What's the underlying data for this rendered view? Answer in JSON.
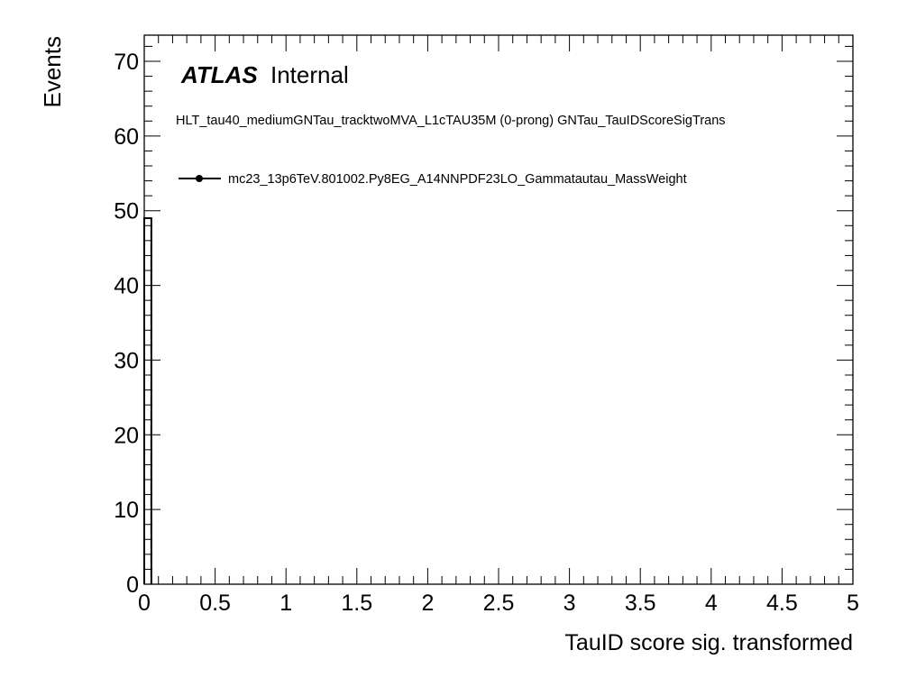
{
  "chart_data": {
    "type": "histogram",
    "xlabel": "TauID score sig. transformed",
    "ylabel": "Events",
    "xlim": [
      0,
      5
    ],
    "ylim": [
      0,
      73.5
    ],
    "x_ticks": [
      "0",
      "0.5",
      "1",
      "1.5",
      "2",
      "2.5",
      "3",
      "3.5",
      "4",
      "4.5",
      "5"
    ],
    "y_ticks": [
      "0",
      "10",
      "20",
      "30",
      "40",
      "50",
      "60",
      "70"
    ],
    "bin_width": 0.05,
    "series": [
      {
        "name": "mc23_13p6TeV.801002.Py8EG_A14NNPDF23LO_Gammatautau_MassWeight",
        "bins": [
          {
            "x_low": 0.0,
            "x_high": 0.05,
            "value": 49
          }
        ],
        "color": "#000000",
        "marker": "filled-circle"
      }
    ],
    "atlas_label": "ATLAS",
    "atlas_status": "Internal",
    "selection_label": "HLT_tau40_mediumGNTau_tracktwoMVA_L1cTAU35M (0-prong) GNTau_TauIDScoreSigTrans",
    "legend_position": "top-left"
  }
}
